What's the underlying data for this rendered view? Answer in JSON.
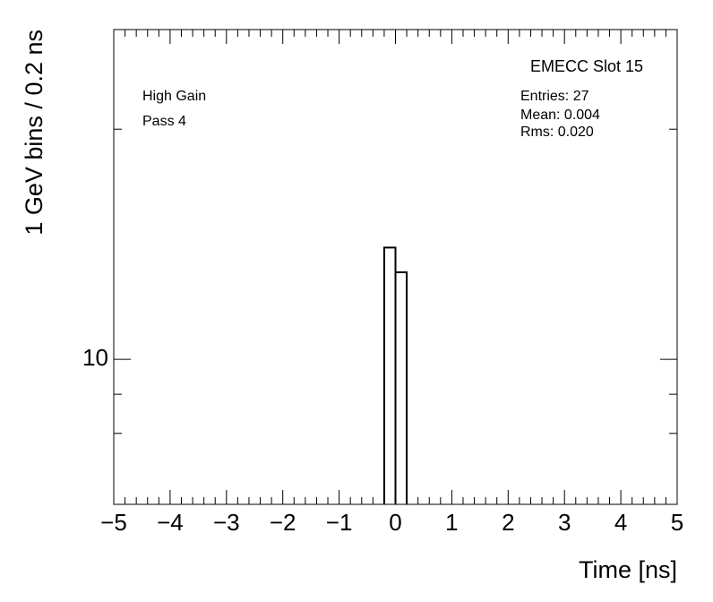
{
  "chart_data": {
    "type": "histogram",
    "title": "EMECC Slot 15",
    "annotations": [
      "High Gain",
      "Pass 4"
    ],
    "stats": [
      "Entries: 27",
      "Mean: 0.004",
      "Rms: 0.020"
    ],
    "x_label": "Time [ns]",
    "y_label": "1 GeV bins / 0.2 ns",
    "bins": [
      -0.2,
      0,
      0.2
    ],
    "counts": [
      14,
      13
    ],
    "color": "#000000",
    "xlim": [
      -5,
      5
    ],
    "xticks": [
      {
        "value": -5,
        "label": "−5"
      },
      {
        "value": -4,
        "label": "−4"
      },
      {
        "value": -3,
        "label": "−3"
      },
      {
        "value": -2,
        "label": "−2"
      },
      {
        "value": -1,
        "label": "−1"
      },
      0,
      1,
      2,
      3,
      4,
      5
    ],
    "ylim": [
      6.46,
      27
    ],
    "yscale": "log",
    "yticks": [
      10
    ],
    "yminorticks": [
      8,
      9,
      20
    ]
  }
}
